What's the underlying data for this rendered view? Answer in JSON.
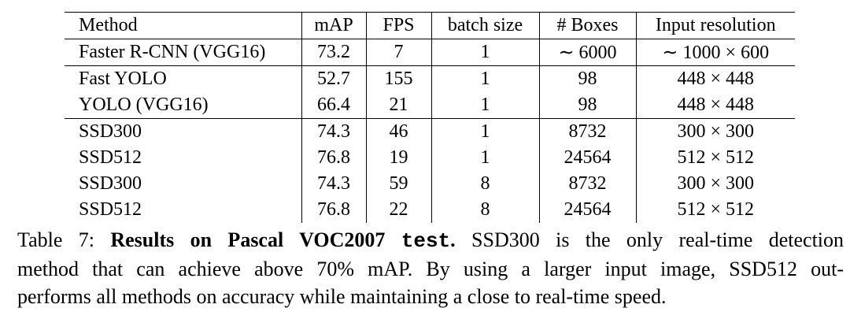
{
  "table": {
    "header": [
      "Method",
      "mAP",
      "FPS",
      "batch size",
      "# Boxes",
      "Input resolution"
    ],
    "rows": [
      [
        "Faster R-CNN (VGG16)",
        "73.2",
        "7",
        "1",
        "∼ 6000",
        "∼ 1000 × 600"
      ],
      [
        "Fast YOLO",
        "52.7",
        "155",
        "1",
        "98",
        "448 × 448"
      ],
      [
        "YOLO (VGG16)",
        "66.4",
        "21",
        "1",
        "98",
        "448 × 448"
      ],
      [
        "SSD300",
        "74.3",
        "46",
        "1",
        "8732",
        "300 × 300"
      ],
      [
        "SSD512",
        "76.8",
        "19",
        "1",
        "24564",
        "512 × 512"
      ],
      [
        "SSD300",
        "74.3",
        "59",
        "8",
        "8732",
        "300 × 300"
      ],
      [
        "SSD512",
        "76.8",
        "22",
        "8",
        "24564",
        "512 × 512"
      ]
    ]
  },
  "caption": {
    "label": "Table 7: ",
    "bold": "Results on Pascal VOC2007 ",
    "bold_mono": "test",
    "bold_end": ".",
    "lines": [
      " SSD300 is the only real-time detection",
      "method that can achieve above 70% mAP. By using a larger input image, SSD512 out-",
      "performs all methods on accuracy while maintaining a close to real-time speed."
    ]
  }
}
